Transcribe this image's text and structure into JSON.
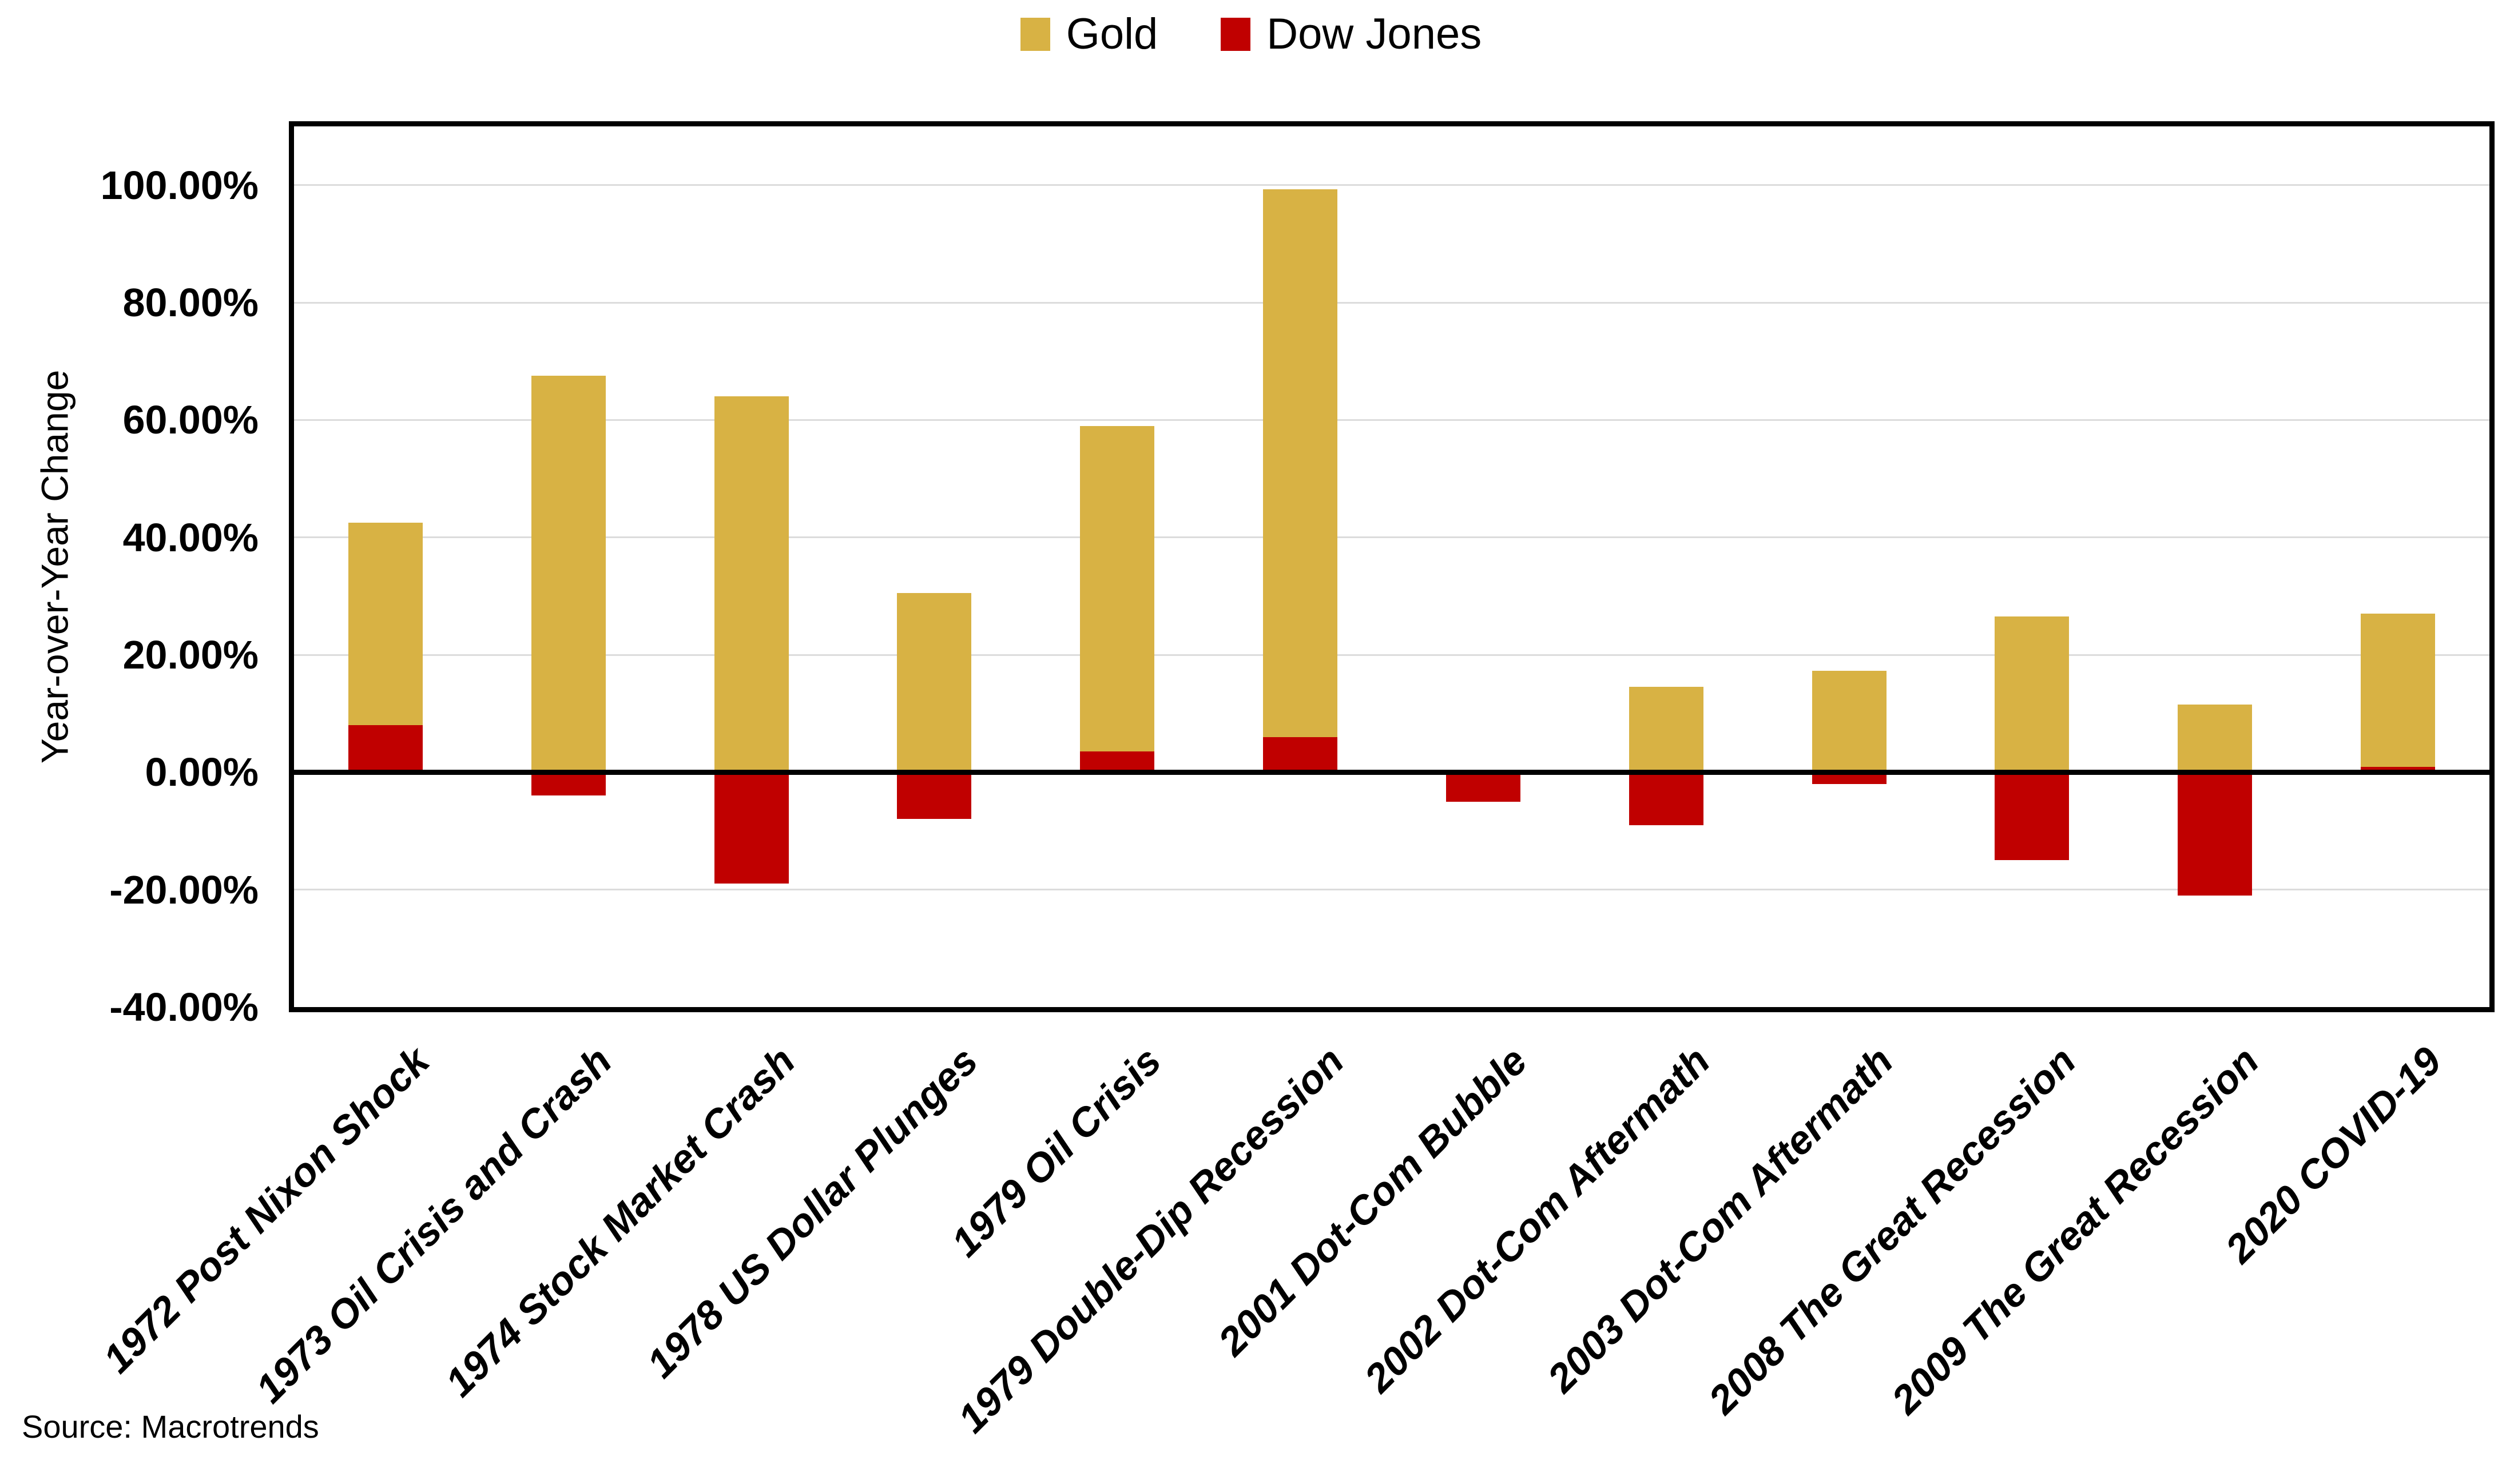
{
  "chart_data": {
    "type": "bar",
    "title": "",
    "xlabel": "",
    "ylabel": "Year-over-Year Change",
    "ylim": [
      -40,
      110
    ],
    "ytick_format": "percent",
    "grid": "horizontal gridlines every 20%",
    "legend_position": "top-center",
    "bar_layout": "overlapped (Dow Jones drawn in front of Gold at same category slot)",
    "categories": [
      "1972 Post Nixon Shock",
      "1973 Oil Crisis and Crash",
      "1974 Stock Market Crash",
      "1978 US Dollar Plunges",
      "1979 Oil Crisis",
      "1979 Double-Dip Recession",
      "2001 Dot-Com Bubble",
      "2002 Dot-Com Aftermath",
      "2003 Dot-Com Aftermath",
      "2008 The Great Recession",
      "2009 The Great Recession",
      "2020 COVID-19"
    ],
    "series": [
      {
        "name": "Gold",
        "color": "#D8B244",
        "unit": "percent",
        "values": [
          42.5,
          67.5,
          64.0,
          30.5,
          59.0,
          99.3,
          0.0,
          14.5,
          17.3,
          26.5,
          11.5,
          27.0
        ]
      },
      {
        "name": "Dow Jones",
        "color": "#C00000",
        "unit": "percent",
        "values": [
          8.0,
          -4.0,
          -19.0,
          -8.0,
          3.5,
          6.0,
          -5.0,
          -9.0,
          -2.0,
          -15.0,
          -21.0,
          0.9
        ]
      }
    ]
  },
  "y_axis": {
    "title": "Year-over-Year Change",
    "ticks": [
      {
        "value": 100,
        "label": "100.00%"
      },
      {
        "value": 80,
        "label": "80.00%"
      },
      {
        "value": 60,
        "label": "60.00%"
      },
      {
        "value": 40,
        "label": "40.00%"
      },
      {
        "value": 20,
        "label": "20.00%"
      },
      {
        "value": 0,
        "label": "0.00%"
      },
      {
        "value": -20,
        "label": "-20.00%"
      },
      {
        "value": -40,
        "label": "-40.00%"
      }
    ]
  },
  "source_note": "Source: Macrotrends"
}
